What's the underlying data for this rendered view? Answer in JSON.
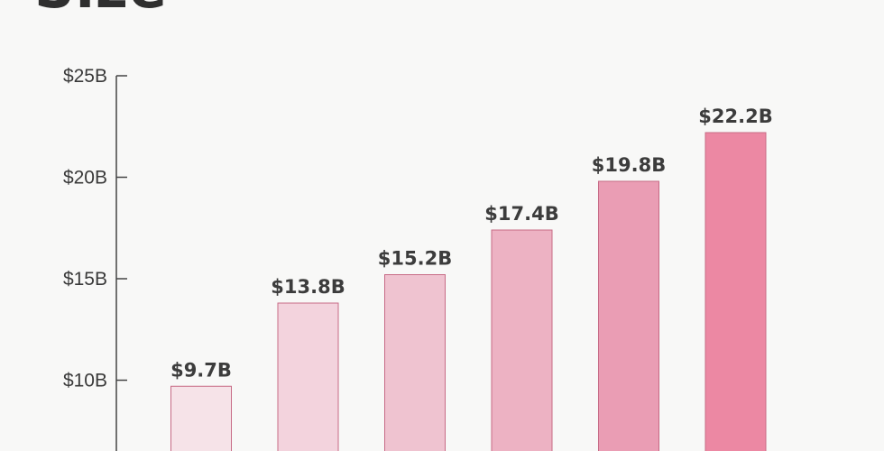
{
  "chart_data": {
    "type": "bar",
    "title": "Size",
    "categories": [
      "",
      "",
      "",
      "",
      "",
      ""
    ],
    "values": [
      9.7,
      13.8,
      15.2,
      17.4,
      19.8,
      22.2
    ],
    "value_labels": [
      "$9.7B",
      "$13.8B",
      "$15.2B",
      "$17.4B",
      "$19.8B",
      "$22.2B"
    ],
    "y_ticks": [
      {
        "value": 10,
        "label": "$10B"
      },
      {
        "value": 15,
        "label": "$15B"
      },
      {
        "value": 20,
        "label": "$20B"
      },
      {
        "value": 25,
        "label": "$25B"
      }
    ],
    "ylim": [
      5,
      25
    ],
    "xlabel": "",
    "ylabel": "",
    "grid": false,
    "bar_colors": [
      "#f6e3e8",
      "#f3d3dd",
      "#efc3d0",
      "#edb2c3",
      "#ea9db4",
      "#ec88a3"
    ],
    "bar_edge_color": "#c76b86",
    "axis_color": "#444444"
  }
}
